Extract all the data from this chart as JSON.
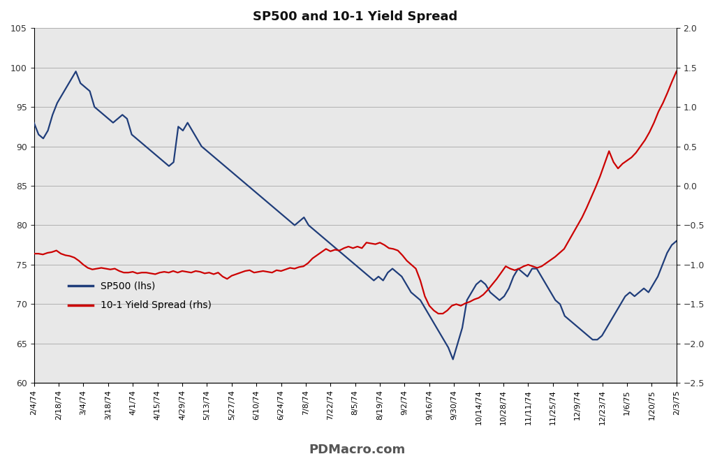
{
  "title": "SP500 and 10-1 Yield Spread",
  "watermark": "PDMacro.com",
  "sp500_label": "SP500 (lhs)",
  "spread_label": "10-1 Yield Spread (rhs)",
  "left_ylim": [
    60,
    105
  ],
  "right_ylim": [
    -2.5,
    2.0
  ],
  "left_yticks": [
    60,
    65,
    70,
    75,
    80,
    85,
    90,
    95,
    100,
    105
  ],
  "right_yticks": [
    -2.5,
    -2.0,
    -1.5,
    -1.0,
    -0.5,
    0.0,
    0.5,
    1.0,
    1.5,
    2.0
  ],
  "sp500_color": "#1f3d7a",
  "spread_color": "#cc0000",
  "bg_color": "#e8e8e8",
  "fig_bg": "#ffffff",
  "x_labels": [
    "2/4/74",
    "2/18/74",
    "3/4/74",
    "3/18/74",
    "4/1/74",
    "4/15/74",
    "4/29/74",
    "5/13/74",
    "5/27/74",
    "6/10/74",
    "6/24/74",
    "7/8/74",
    "7/22/74",
    "8/5/74",
    "8/19/74",
    "9/2/74",
    "9/16/74",
    "9/30/74",
    "10/14/74",
    "10/28/74",
    "11/11/74",
    "11/25/74",
    "12/9/74",
    "12/23/74",
    "1/6/75",
    "1/20/75",
    "2/3/75"
  ],
  "sp500_values": [
    93.0,
    91.5,
    91.0,
    92.0,
    94.0,
    95.5,
    96.5,
    97.5,
    98.5,
    99.5,
    98.0,
    97.5,
    97.0,
    95.0,
    94.5,
    94.0,
    93.5,
    93.0,
    93.5,
    94.0,
    93.5,
    91.5,
    91.0,
    90.5,
    90.0,
    89.5,
    89.0,
    88.5,
    88.0,
    87.5,
    88.0,
    92.5,
    92.0,
    93.0,
    92.0,
    91.0,
    90.0,
    89.5,
    89.0,
    88.5,
    88.0,
    87.5,
    87.0,
    86.5,
    86.0,
    85.5,
    85.0,
    84.5,
    84.0,
    83.5,
    83.0,
    82.5,
    82.0,
    81.5,
    81.0,
    80.5,
    80.0,
    80.5,
    81.0,
    80.0,
    79.5,
    79.0,
    78.5,
    78.0,
    77.5,
    77.0,
    76.5,
    76.0,
    75.5,
    75.0,
    74.5,
    74.0,
    73.5,
    73.0,
    73.5,
    73.0,
    74.0,
    74.5,
    74.0,
    73.5,
    72.5,
    71.5,
    71.0,
    70.5,
    69.5,
    68.5,
    67.5,
    66.5,
    65.5,
    64.5,
    63.0,
    65.0,
    67.0,
    70.5,
    71.5,
    72.5,
    73.0,
    72.5,
    71.5,
    71.0,
    70.5,
    71.0,
    72.0,
    73.5,
    74.5,
    74.0,
    73.5,
    74.5,
    74.5,
    73.5,
    72.5,
    71.5,
    70.5,
    70.0,
    68.5,
    68.0,
    67.5,
    67.0,
    66.5,
    66.0,
    65.5,
    65.5,
    66.0,
    67.0,
    68.0,
    69.0,
    70.0,
    71.0,
    71.5,
    71.0,
    71.5,
    72.0,
    71.5,
    72.5,
    73.5,
    75.0,
    76.5,
    77.5,
    78.0
  ],
  "spread_values": [
    -0.86,
    -0.86,
    -0.87,
    -0.85,
    -0.84,
    -0.82,
    -0.86,
    -0.88,
    -0.89,
    -0.91,
    -0.95,
    -1.0,
    -1.04,
    -1.06,
    -1.05,
    -1.04,
    -1.05,
    -1.06,
    -1.05,
    -1.08,
    -1.1,
    -1.1,
    -1.09,
    -1.11,
    -1.1,
    -1.1,
    -1.11,
    -1.12,
    -1.1,
    -1.09,
    -1.1,
    -1.08,
    -1.1,
    -1.08,
    -1.09,
    -1.1,
    -1.08,
    -1.09,
    -1.11,
    -1.1,
    -1.12,
    -1.1,
    -1.15,
    -1.18,
    -1.14,
    -1.12,
    -1.1,
    -1.08,
    -1.07,
    -1.1,
    -1.09,
    -1.08,
    -1.09,
    -1.1,
    -1.07,
    -1.08,
    -1.06,
    -1.04,
    -1.05,
    -1.03,
    -1.02,
    -0.98,
    -0.92,
    -0.88,
    -0.84,
    -0.8,
    -0.83,
    -0.81,
    -0.82,
    -0.79,
    -0.77,
    -0.79,
    -0.77,
    -0.79,
    -0.72,
    -0.73,
    -0.74,
    -0.72,
    -0.75,
    -0.79,
    -0.8,
    -0.82,
    -0.88,
    -0.95,
    -1.0,
    -1.05,
    -1.2,
    -1.4,
    -1.52,
    -1.58,
    -1.62,
    -1.62,
    -1.58,
    -1.52,
    -1.5,
    -1.52,
    -1.49,
    -1.47,
    -1.44,
    -1.42,
    -1.38,
    -1.32,
    -1.25,
    -1.18,
    -1.1,
    -1.02,
    -1.05,
    -1.07,
    -1.05,
    -1.02,
    -1.0,
    -1.02,
    -1.04,
    -1.02,
    -0.98,
    -0.94,
    -0.9,
    -0.85,
    -0.8,
    -0.7,
    -0.6,
    -0.5,
    -0.4,
    -0.28,
    -0.15,
    -0.02,
    0.12,
    0.28,
    0.44,
    0.3,
    0.22,
    0.28,
    0.32,
    0.36,
    0.42,
    0.5,
    0.58,
    0.68,
    0.8,
    0.94,
    1.05,
    1.18,
    1.32,
    1.45
  ],
  "n_sp500": 139,
  "n_spread": 144
}
